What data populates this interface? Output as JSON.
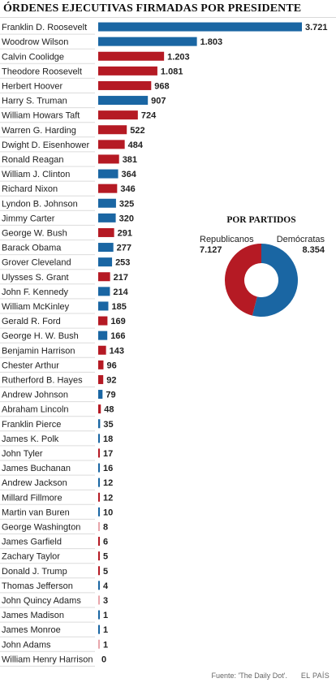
{
  "title": "ÓRDENES EJECUTIVAS FIRMADAS POR PRESIDENTE",
  "colors": {
    "republicano": "#b51a24",
    "democrata": "#1a66a3"
  },
  "chart_data": [
    {
      "type": "bar",
      "orientation": "horizontal",
      "title": "ÓRDENES EJECUTIVAS FIRMADAS POR PRESIDENTE",
      "categories": [
        "Franklin D. Roosevelt",
        "Woodrow Wilson",
        "Calvin Coolidge",
        "Theodore Roosevelt",
        "Herbert Hoover",
        "Harry S. Truman",
        "William Howars Taft",
        "Warren G. Harding",
        "Dwight D. Eisenhower",
        "Ronald Reagan",
        "William J. Clinton",
        "Richard Nixon",
        "Lyndon B. Johnson",
        "Jimmy Carter",
        "George W. Bush",
        "Barack Obama",
        "Grover Cleveland",
        "Ulysses S. Grant",
        "John F. Kennedy",
        "William McKinley",
        "Gerald R. Ford",
        "George H. W. Bush",
        "Benjamin Harrison",
        "Chester Arthur",
        "Rutherford B. Hayes",
        "Andrew Johnson",
        "Abraham Lincoln",
        "Franklin Pierce",
        "James K. Polk",
        "John Tyler",
        "James Buchanan",
        "Andrew Jackson",
        "Millard Fillmore",
        "Martin van Buren",
        "George Washington",
        "James Garfield",
        "Zachary Taylor",
        "Donald J. Trump",
        "Thomas Jefferson",
        "John Quincy Adams",
        "James Madison",
        "James Monroe",
        "John Adams",
        "William Henry Harrison"
      ],
      "values": [
        3721,
        1803,
        1203,
        1081,
        968,
        907,
        724,
        522,
        484,
        381,
        364,
        346,
        325,
        320,
        291,
        277,
        253,
        217,
        214,
        185,
        169,
        166,
        143,
        96,
        92,
        79,
        48,
        35,
        18,
        17,
        16,
        12,
        12,
        10,
        8,
        6,
        5,
        5,
        4,
        3,
        1,
        1,
        1,
        0
      ],
      "value_labels": [
        "3.721",
        "1.803",
        "1.203",
        "1.081",
        "968",
        "907",
        "724",
        "522",
        "484",
        "381",
        "364",
        "346",
        "325",
        "320",
        "291",
        "277",
        "253",
        "217",
        "214",
        "185",
        "169",
        "166",
        "143",
        "96",
        "92",
        "79",
        "48",
        "35",
        "18",
        "17",
        "16",
        "12",
        "12",
        "10",
        "8",
        "6",
        "5",
        "5",
        "4",
        "3",
        "1",
        "1",
        "1",
        "0"
      ],
      "party": [
        "D",
        "D",
        "R",
        "R",
        "R",
        "D",
        "R",
        "R",
        "R",
        "R",
        "D",
        "R",
        "D",
        "D",
        "R",
        "D",
        "D",
        "R",
        "D",
        "D",
        "R",
        "D",
        "R",
        "R",
        "R",
        "D",
        "R",
        "D",
        "D",
        "R",
        "D",
        "D",
        "R",
        "D",
        "N",
        "R",
        "R",
        "R",
        "D",
        "N",
        "D",
        "D",
        "N",
        "R"
      ],
      "party_colors": {
        "D": "#1a66a3",
        "R": "#b51a24",
        "N": "#e8a6ab"
      },
      "xlim": [
        0,
        3721
      ],
      "grid": false,
      "legend": "none"
    },
    {
      "type": "pie",
      "variant": "donut",
      "title": "POR PARTIDOS",
      "labels": [
        "Republicanos",
        "Demócratas"
      ],
      "values": [
        7127,
        8354
      ],
      "value_labels": [
        "7.127",
        "8.354"
      ],
      "colors": [
        "#b51a24",
        "#1a66a3"
      ]
    }
  ],
  "footer": {
    "source": "Fuente: 'The Daily Dot'.",
    "brand": "EL PAÍS"
  }
}
